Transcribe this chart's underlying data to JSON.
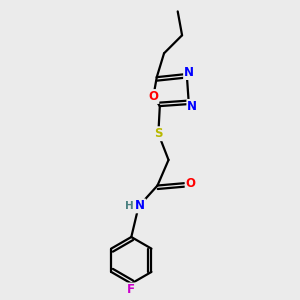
{
  "bg_color": "#ebebeb",
  "atom_colors": {
    "C": "#000000",
    "H": "#4a8080",
    "N": "#0000ff",
    "O": "#ff0000",
    "S": "#b8b800",
    "F": "#cc00cc"
  },
  "bond_color": "#000000",
  "bond_width": 1.6,
  "figsize": [
    3.0,
    3.0
  ],
  "dpi": 100
}
